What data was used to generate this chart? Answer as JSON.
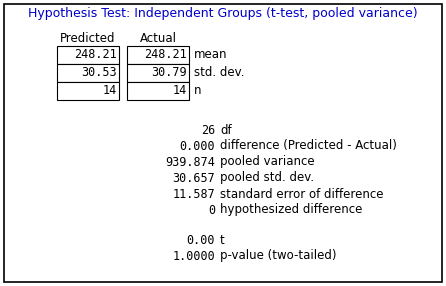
{
  "title": "Hypothesis Test: Independent Groups (t-test, pooled variance)",
  "title_color": "#0000CC",
  "bg_color": "#FFFFFF",
  "border_color": "#000000",
  "col_headers": [
    "Predicted",
    "Actual"
  ],
  "table_data": [
    [
      "248.21",
      "248.21",
      "mean"
    ],
    [
      "30.53",
      "30.79",
      "std. dev."
    ],
    [
      "14",
      "14",
      "n"
    ]
  ],
  "stats_rows": [
    [
      "26",
      "df"
    ],
    [
      "0.000",
      "difference (Predicted - Actual)"
    ],
    [
      "939.874",
      "pooled variance"
    ],
    [
      "30.657",
      "pooled std. dev."
    ],
    [
      "11.587",
      "standard error of difference"
    ],
    [
      "0",
      "hypothesized difference"
    ]
  ],
  "result_rows": [
    [
      "0.00",
      "t"
    ],
    [
      "1.0000",
      "p-value (two-tailed)"
    ]
  ],
  "font_size": 8.5,
  "title_font_size": 9.0,
  "fig_width": 4.46,
  "fig_height": 2.86,
  "dpi": 100
}
